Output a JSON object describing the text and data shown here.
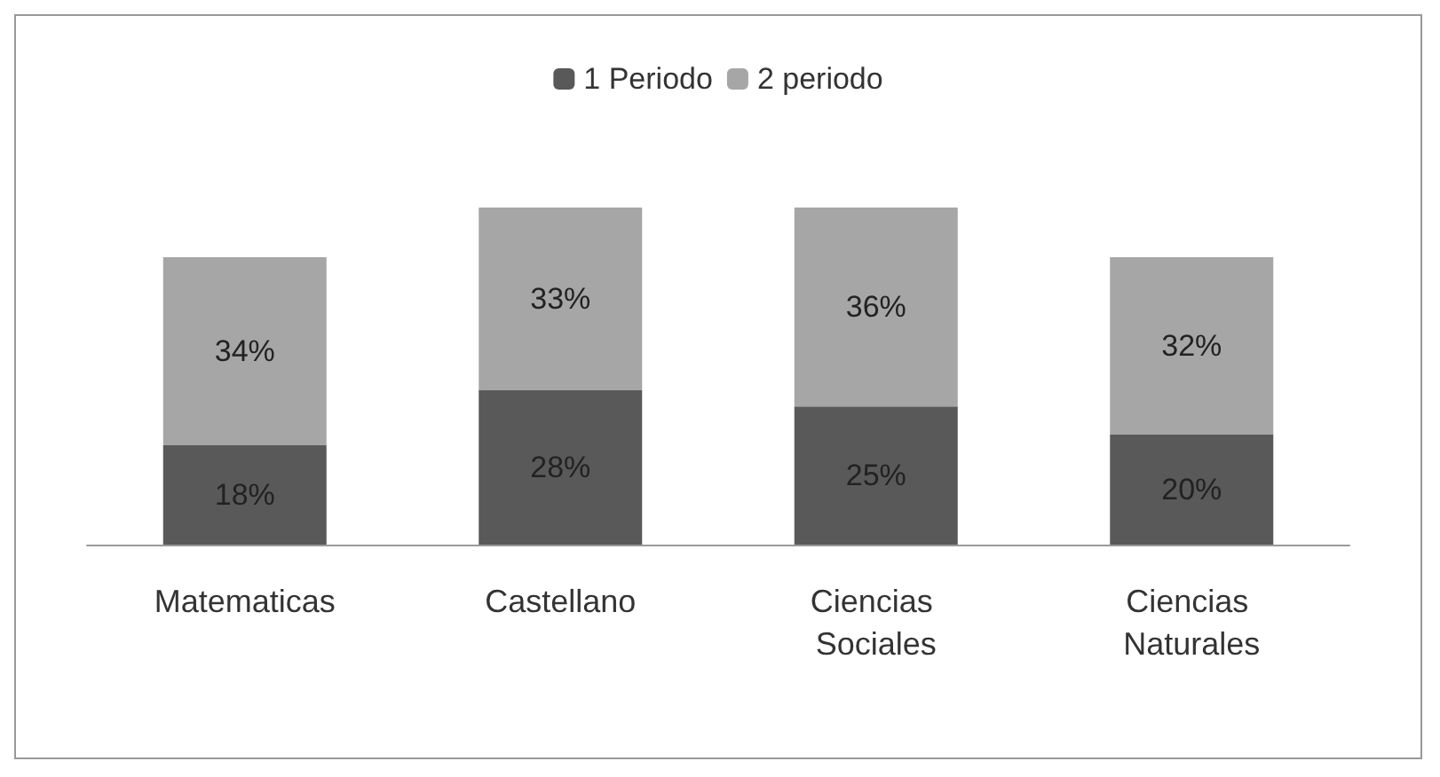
{
  "chart_data": {
    "type": "bar",
    "stacked": true,
    "legend": "top",
    "categories": [
      "Matematicas",
      "Castellano",
      "Ciencias Sociales",
      "Ciencias Naturales"
    ],
    "series": [
      {
        "name": "1 Periodo",
        "color": "#595959",
        "values": [
          18,
          28,
          25,
          20
        ],
        "value_labels": [
          "18%",
          "28%",
          "25%",
          "20%"
        ]
      },
      {
        "name": "2 periodo",
        "color": "#a6a6a6",
        "values": [
          34,
          33,
          36,
          32
        ],
        "value_labels": [
          "34%",
          "33%",
          "36%",
          "32%"
        ]
      }
    ]
  }
}
